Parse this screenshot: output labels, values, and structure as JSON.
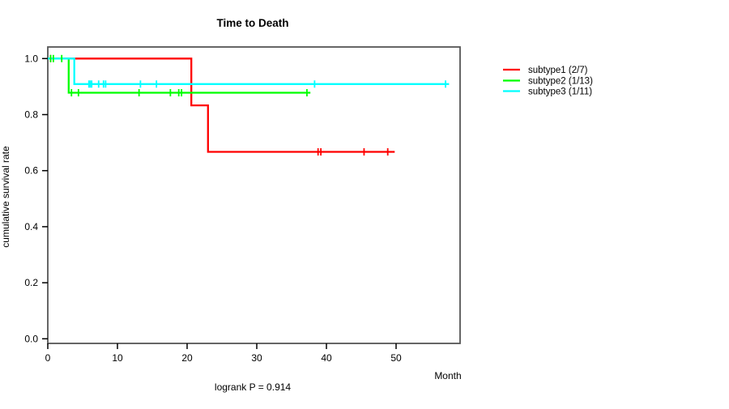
{
  "title": "Time to Death",
  "xlabel": "Month",
  "ylabel": "cumulative survival rate",
  "annotation": "logrank P = 0.914",
  "colors": {
    "subtype1": "#ff0000",
    "subtype2": "#00ff00",
    "subtype3": "#00ffff",
    "box_border": "#555555",
    "axis": "#000000"
  },
  "legend": {
    "items": [
      {
        "label": "subtype1 (2/7)",
        "color": "#ff0000"
      },
      {
        "label": "subtype2 (1/13)",
        "color": "#00ff00"
      },
      {
        "label": "subtype3 (1/11)",
        "color": "#00ffff"
      }
    ]
  },
  "chart_data": {
    "type": "line",
    "variant": "kaplan-meier-step",
    "title": "Time to Death",
    "xlabel": "Month",
    "ylabel": "cumulative survival rate",
    "annotation": "logrank P = 0.914",
    "xlim": [
      0,
      59.2
    ],
    "ylim": [
      0.0,
      1.0
    ],
    "xticks": [
      0,
      10,
      20,
      30,
      40,
      50
    ],
    "yticks": [
      0.0,
      0.2,
      0.4,
      0.6,
      0.8,
      1.0
    ],
    "grid": false,
    "legend_position": "right-outside",
    "series": [
      {
        "name": "subtype1 (2/7)",
        "color": "#ff0000",
        "events_over_n": "2/7",
        "steps": [
          [
            0,
            1.0
          ],
          [
            20.6,
            1.0
          ],
          [
            20.6,
            0.833
          ],
          [
            23.0,
            0.833
          ],
          [
            23.0,
            0.667
          ],
          [
            49.8,
            0.667
          ]
        ],
        "censor_marks": [
          [
            0.4,
            1.0
          ],
          [
            38.8,
            0.667
          ],
          [
            39.2,
            0.667
          ],
          [
            45.4,
            0.667
          ],
          [
            48.8,
            0.667
          ]
        ]
      },
      {
        "name": "subtype2 (1/13)",
        "color": "#00ff00",
        "events_over_n": "1/13",
        "steps": [
          [
            0,
            1.0
          ],
          [
            3.0,
            1.0
          ],
          [
            3.0,
            0.878
          ],
          [
            37.7,
            0.878
          ]
        ],
        "censor_marks": [
          [
            0.4,
            1.0
          ],
          [
            0.8,
            1.0
          ],
          [
            2.0,
            1.0
          ],
          [
            3.4,
            0.878
          ],
          [
            4.4,
            0.878
          ],
          [
            13.1,
            0.878
          ],
          [
            17.6,
            0.878
          ],
          [
            18.8,
            0.878
          ],
          [
            19.2,
            0.878
          ],
          [
            37.2,
            0.878
          ]
        ]
      },
      {
        "name": "subtype3 (1/11)",
        "color": "#00ffff",
        "events_over_n": "1/11",
        "steps": [
          [
            0,
            1.0
          ],
          [
            3.8,
            1.0
          ],
          [
            3.8,
            0.909
          ],
          [
            57.6,
            0.909
          ]
        ],
        "censor_marks": [
          [
            5.9,
            0.909
          ],
          [
            6.1,
            0.909
          ],
          [
            6.3,
            0.909
          ],
          [
            7.3,
            0.909
          ],
          [
            8.0,
            0.909
          ],
          [
            8.3,
            0.909
          ],
          [
            13.3,
            0.909
          ],
          [
            15.6,
            0.909
          ],
          [
            38.3,
            0.909
          ],
          [
            57.1,
            0.909
          ]
        ]
      }
    ]
  }
}
